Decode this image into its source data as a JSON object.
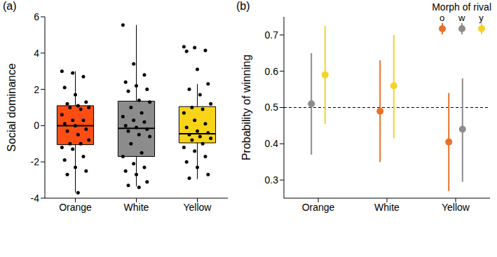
{
  "chart_data": [
    {
      "type": "box",
      "panel_label": "(a)",
      "y_label": "Social dominance",
      "categories": [
        "Orange",
        "White",
        "Yellow"
      ],
      "colors": [
        "#fc4e14",
        "#8c8c8c",
        "#f7d418"
      ],
      "boxes": [
        {
          "min": -3.7,
          "q1": -1.05,
          "median": 0.0,
          "q3": 1.1,
          "max": 3.0
        },
        {
          "min": -3.35,
          "q1": -1.7,
          "median": -0.15,
          "q3": 1.35,
          "max": 5.55
        },
        {
          "min": -2.95,
          "q1": -0.95,
          "median": -0.45,
          "q3": 1.05,
          "max": 2.3
        }
      ],
      "points": [
        [
          3.0,
          2.9,
          2.7,
          2.1,
          1.7,
          1.3,
          1.2,
          1.1,
          1.0,
          1.0,
          0.9,
          0.6,
          0.3,
          0.3,
          0.1,
          0.0,
          -0.2,
          -0.3,
          -0.5,
          -0.8,
          -1.0,
          -1.0,
          -1.2,
          -1.3,
          -1.7,
          -1.9,
          -2.3,
          -2.5,
          -2.7,
          -3.7
        ],
        [
          5.55,
          3.4,
          2.8,
          2.4,
          2.2,
          2.0,
          1.9,
          1.4,
          1.3,
          1.0,
          0.7,
          0.5,
          0.3,
          0.2,
          0.0,
          -0.1,
          -0.2,
          -0.3,
          -0.5,
          -0.6,
          -1.0,
          -1.5,
          -1.7,
          -2.1,
          -2.3,
          -2.5,
          -2.7,
          -3.1,
          -3.3,
          -3.4
        ],
        [
          4.35,
          4.3,
          4.15,
          4.1,
          3.1,
          2.3,
          2.0,
          1.7,
          1.2,
          1.0,
          0.9,
          0.7,
          0.3,
          0.1,
          -0.1,
          -0.3,
          -0.4,
          -0.5,
          -0.6,
          -0.7,
          -0.8,
          -1.0,
          -1.2,
          -1.4,
          -1.7,
          -2.0,
          -2.3,
          -2.7,
          -2.9
        ]
      ],
      "ylim": [
        -4,
        6
      ],
      "yticks": [
        -4,
        -2,
        0,
        2,
        4,
        6
      ]
    },
    {
      "type": "scatter",
      "panel_label": "(b)",
      "y_label": "Probability of winning",
      "categories": [
        "Orange",
        "White",
        "Yellow"
      ],
      "legend_title": "Morph of rival",
      "legend": "upper right",
      "series": [
        {
          "name": "o",
          "color": "#e8702a",
          "values": [
            null,
            0.49,
            0.405
          ],
          "lower": [
            null,
            0.35,
            0.27
          ],
          "upper": [
            null,
            0.63,
            0.54
          ]
        },
        {
          "name": "w",
          "color": "#8c8c8c",
          "values": [
            0.51,
            null,
            0.44
          ],
          "lower": [
            0.37,
            null,
            0.295
          ],
          "upper": [
            0.65,
            null,
            0.58
          ]
        },
        {
          "name": "y",
          "color": "#f5d328",
          "values": [
            0.59,
            0.56,
            null
          ],
          "lower": [
            0.455,
            0.415,
            null
          ],
          "upper": [
            0.725,
            0.7,
            null
          ]
        }
      ],
      "reference_line": 0.5,
      "ylim": [
        0.25,
        0.75
      ],
      "yticks": [
        0.3,
        0.4,
        0.5,
        0.6,
        0.7
      ]
    }
  ]
}
